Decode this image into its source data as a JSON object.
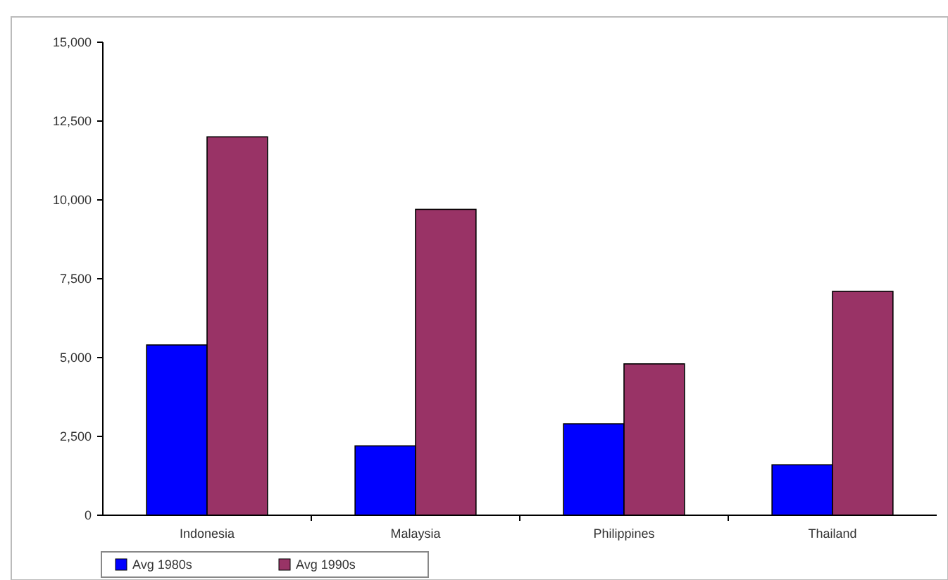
{
  "chart_data": {
    "type": "bar",
    "categories": [
      "Indonesia",
      "Malaysia",
      "Philippines",
      "Thailand"
    ],
    "series": [
      {
        "name": "Avg 1980s",
        "color": "#0000ff",
        "values": [
          5400,
          2200,
          2900,
          1600
        ]
      },
      {
        "name": "Avg 1990s",
        "color": "#993366",
        "values": [
          12000,
          9700,
          4800,
          7100
        ]
      }
    ],
    "ylim": [
      0,
      15000
    ],
    "yticks": [
      0,
      {
        "value": 2500,
        "label": "2,500"
      },
      {
        "value": 5000,
        "label": "5,000"
      },
      {
        "value": 7500,
        "label": "7,500"
      },
      {
        "value": 10000,
        "label": "10,000"
      },
      {
        "value": 12500,
        "label": "12,500"
      },
      {
        "value": 15000,
        "label": "15,000"
      }
    ],
    "grid": false,
    "legend": "bottom left"
  }
}
